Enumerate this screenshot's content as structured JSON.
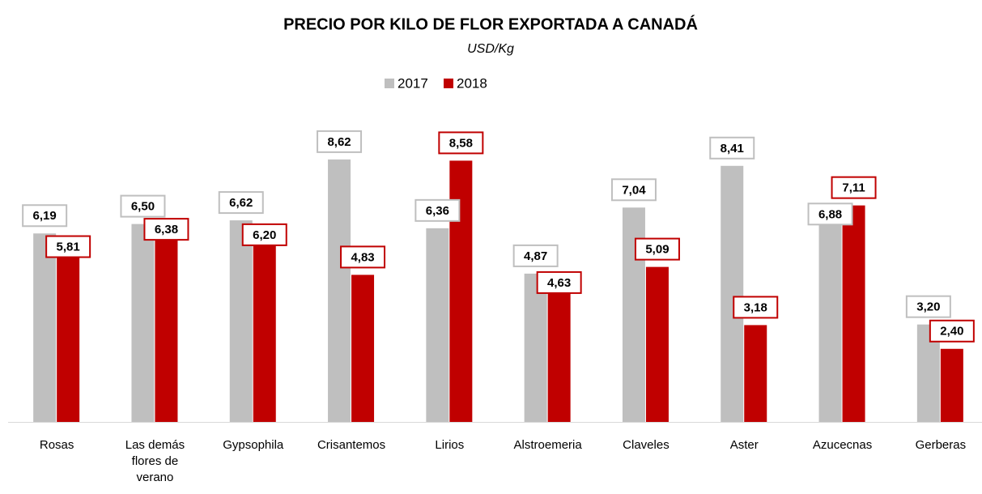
{
  "chart_data": {
    "type": "bar",
    "title": "PRECIO POR KILO DE FLOR EXPORTADA A CANADÁ",
    "subtitle": "USD/Kg",
    "legend": "top",
    "categories": [
      "Rosas",
      "Las demás flores de verano",
      "Gypsophila",
      "Crisantemos",
      "Lirios",
      "Alstroemeria",
      "Claveles",
      "Aster",
      "Azucecnas",
      "Gerberas"
    ],
    "series": [
      {
        "name": "2017",
        "color": "#bfbfbf",
        "values": [
          6.19,
          6.5,
          6.62,
          8.62,
          6.36,
          4.87,
          7.04,
          8.41,
          6.88,
          3.2
        ],
        "value_labels": [
          "6,19",
          "6,50",
          "6,62",
          "8,62",
          "6,36",
          "4,87",
          "7,04",
          "8,41",
          "6,88",
          "3,20"
        ]
      },
      {
        "name": "2018",
        "color": "#c00000",
        "values": [
          5.81,
          6.38,
          6.2,
          4.83,
          8.58,
          4.63,
          5.09,
          3.18,
          7.11,
          2.4
        ],
        "value_labels": [
          "5,81",
          "6,38",
          "6,20",
          "4,83",
          "8,58",
          "4,63",
          "5,09",
          "3,18",
          "7,11",
          "2,40"
        ]
      }
    ]
  }
}
